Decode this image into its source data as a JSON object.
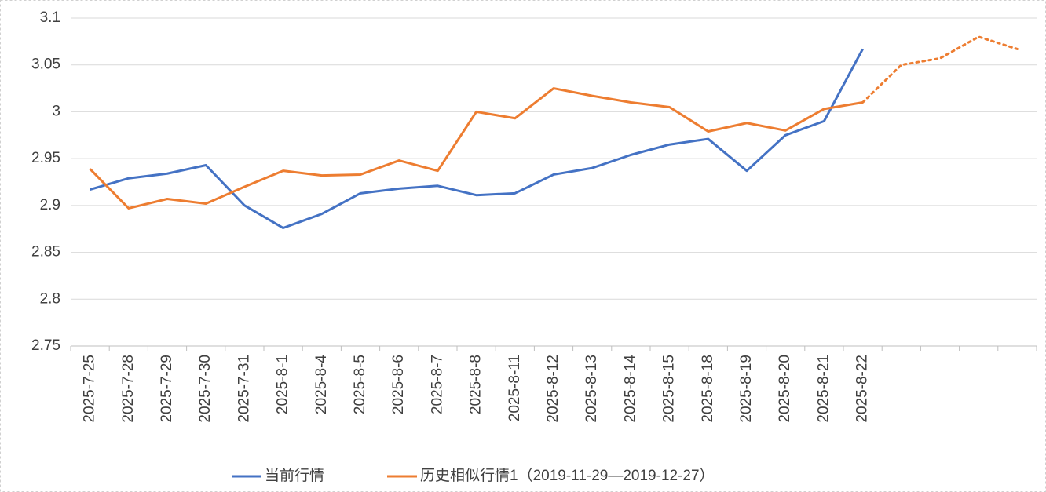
{
  "chart_data": {
    "type": "line",
    "categories": [
      "2025-7-25",
      "2025-7-28",
      "2025-7-29",
      "2025-7-30",
      "2025-7-31",
      "2025-8-1",
      "2025-8-4",
      "2025-8-5",
      "2025-8-6",
      "2025-8-7",
      "2025-8-8",
      "2025-8-11",
      "2025-8-12",
      "2025-8-13",
      "2025-8-14",
      "2025-8-15",
      "2025-8-18",
      "2025-8-19",
      "2025-8-20",
      "2025-8-21",
      "2025-8-22",
      null,
      null,
      null,
      null
    ],
    "series": [
      {
        "name": "当前行情",
        "color": "#4472c4",
        "values": [
          2.917,
          2.929,
          2.934,
          2.943,
          2.9,
          2.876,
          2.891,
          2.913,
          2.918,
          2.921,
          2.911,
          2.913,
          2.933,
          2.94,
          2.954,
          2.965,
          2.971,
          2.937,
          2.975,
          2.99,
          3.067,
          null,
          null,
          null,
          null
        ]
      },
      {
        "name": "历史相似行情1（2019-11-29—2019-12-27）",
        "color": "#ed7d31",
        "dotted_from": 20,
        "values": [
          2.939,
          2.897,
          2.907,
          2.902,
          2.92,
          2.937,
          2.932,
          2.933,
          2.948,
          2.937,
          3.0,
          2.993,
          3.025,
          3.017,
          3.01,
          3.005,
          2.979,
          2.988,
          2.98,
          3.003,
          3.01,
          3.05,
          3.057,
          3.08,
          3.067
        ]
      }
    ],
    "ylim": [
      2.75,
      3.1
    ],
    "yticks": [
      2.75,
      2.8,
      2.85,
      2.9,
      2.95,
      3,
      3.05,
      3.1
    ],
    "grid": true,
    "legend": "bottom"
  }
}
